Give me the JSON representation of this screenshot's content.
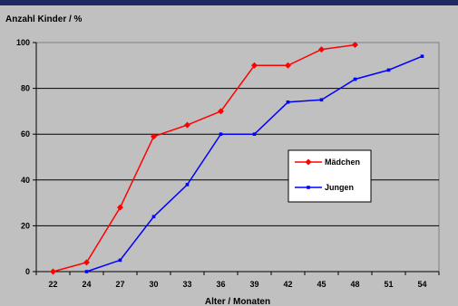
{
  "chart_data": {
    "type": "line",
    "ylabel": "Anzahl Kinder / %",
    "xlabel": "Alter  / Monaten",
    "categories": [
      "22",
      "24",
      "27",
      "30",
      "33",
      "36",
      "39",
      "42",
      "45",
      "48",
      "51",
      "54"
    ],
    "ylim": [
      0,
      100
    ],
    "yticks": [
      0,
      20,
      40,
      60,
      80,
      100
    ],
    "grid": true,
    "legend_position": "right",
    "series": [
      {
        "name": "Mädchen",
        "color": "#ff0000",
        "marker": "diamond",
        "values": [
          0,
          4,
          28,
          59,
          64,
          70,
          90,
          90,
          97,
          99,
          null,
          null
        ]
      },
      {
        "name": "Jungen",
        "color": "#0000ff",
        "marker": "square",
        "values": [
          null,
          0,
          5,
          24,
          38,
          60,
          60,
          74,
          75,
          84,
          88,
          94
        ]
      }
    ]
  }
}
